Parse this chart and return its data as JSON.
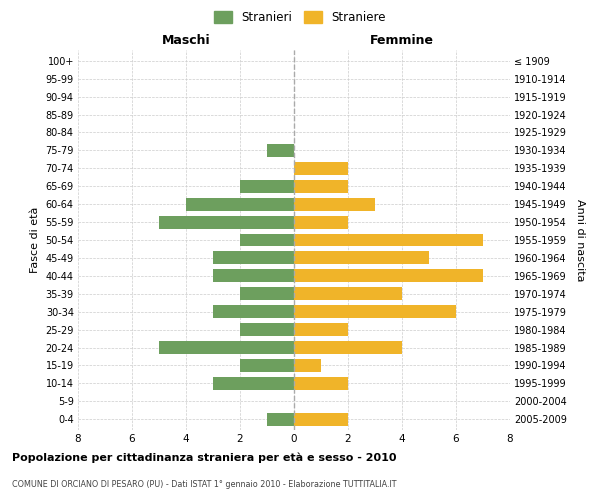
{
  "age_groups": [
    "0-4",
    "5-9",
    "10-14",
    "15-19",
    "20-24",
    "25-29",
    "30-34",
    "35-39",
    "40-44",
    "45-49",
    "50-54",
    "55-59",
    "60-64",
    "65-69",
    "70-74",
    "75-79",
    "80-84",
    "85-89",
    "90-94",
    "95-99",
    "100+"
  ],
  "birth_years": [
    "2005-2009",
    "2000-2004",
    "1995-1999",
    "1990-1994",
    "1985-1989",
    "1980-1984",
    "1975-1979",
    "1970-1974",
    "1965-1969",
    "1960-1964",
    "1955-1959",
    "1950-1954",
    "1945-1949",
    "1940-1944",
    "1935-1939",
    "1930-1934",
    "1925-1929",
    "1920-1924",
    "1915-1919",
    "1910-1914",
    "≤ 1909"
  ],
  "males": [
    1,
    0,
    3,
    2,
    5,
    2,
    3,
    2,
    3,
    3,
    2,
    5,
    4,
    2,
    0,
    1,
    0,
    0,
    0,
    0,
    0
  ],
  "females": [
    2,
    0,
    2,
    1,
    4,
    2,
    6,
    4,
    7,
    5,
    7,
    2,
    3,
    2,
    2,
    0,
    0,
    0,
    0,
    0,
    0
  ],
  "male_color": "#6d9f5e",
  "female_color": "#f0b429",
  "title": "Popolazione per cittadinanza straniera per età e sesso - 2010",
  "subtitle": "COMUNE DI ORCIANO DI PESARO (PU) - Dati ISTAT 1° gennaio 2010 - Elaborazione TUTTITALIA.IT",
  "xlabel_left": "Maschi",
  "xlabel_right": "Femmine",
  "ylabel_left": "Fasce di età",
  "ylabel_right": "Anni di nascita",
  "legend_male": "Stranieri",
  "legend_female": "Straniere",
  "xlim": 8,
  "background_color": "#ffffff",
  "grid_color": "#cccccc"
}
